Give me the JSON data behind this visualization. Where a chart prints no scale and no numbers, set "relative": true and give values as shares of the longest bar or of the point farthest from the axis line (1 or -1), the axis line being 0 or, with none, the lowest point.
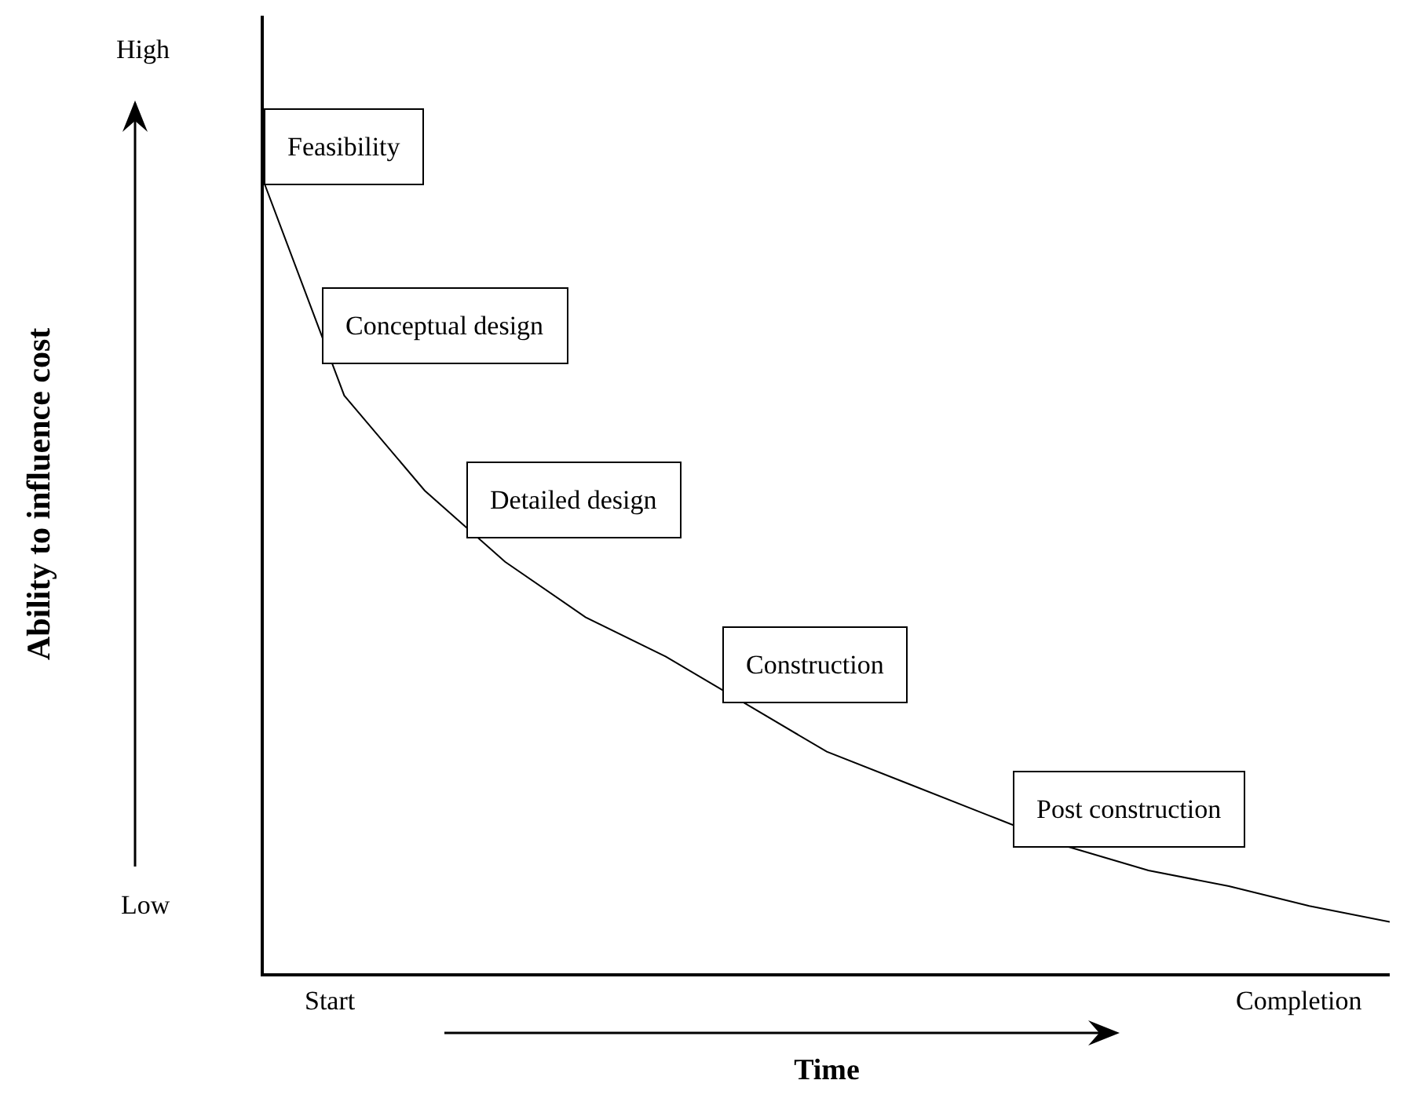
{
  "chart_data": {
    "type": "line",
    "relative": true,
    "xlabel": "Time",
    "categories": [
      null,
      null,
      null,
      null,
      null,
      null,
      null,
      null,
      null,
      null,
      null,
      null,
      null,
      null,
      null
    ],
    "series": [
      {
        "color": "#000000",
        "values": [
          1,
          0.73,
          0.61,
          0.52,
          0.45,
          0.4,
          0.34,
          0.28,
          0.24,
          0.2,
          0.16,
          0.13,
          0.11,
          0.085,
          0.065
        ]
      }
    ],
    "annotations": [
      "High",
      "Low",
      "Start",
      "Completion",
      "Feasibility",
      "Conceptual design",
      "Detailed design",
      "Construction",
      "Post construction",
      "Ability to influence cost"
    ],
    "grid": false,
    "marker": "none",
    "line_style": "solid"
  }
}
